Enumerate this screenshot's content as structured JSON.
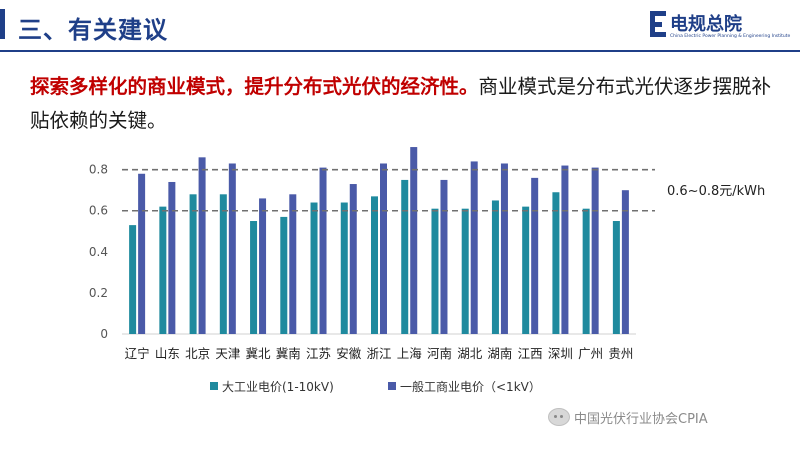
{
  "header": {
    "title": "三、有关建议",
    "logo_name": "电规总院",
    "logo_subtitle": "China Electric Power Planning & Engineering Institute",
    "logo_icon": "logo-mark-icon"
  },
  "lead": {
    "emphasis": "探索多样化的商业模式，提升分布式光伏的经济性。",
    "rest": "商业模式是分布式光伏逐步摆脱补贴依赖的关键。"
  },
  "colors": {
    "accent": "#1f3f88",
    "emphasis": "#c00000",
    "large_industrial": "#1f8a9e",
    "general_commercial": "#4a5aa8"
  },
  "chart_data": {
    "type": "bar",
    "categories": [
      "辽宁",
      "山东",
      "北京",
      "天津",
      "冀北",
      "冀南",
      "江苏",
      "安徽",
      "浙江",
      "上海",
      "河南",
      "湖北",
      "湖南",
      "江西",
      "深圳",
      "广州",
      "贵州"
    ],
    "series": [
      {
        "name": "大工业电价(1-10kV)",
        "values": [
          0.53,
          0.62,
          0.68,
          0.68,
          0.55,
          0.57,
          0.64,
          0.64,
          0.67,
          0.75,
          0.61,
          0.61,
          0.65,
          0.62,
          0.69,
          0.61,
          0.55
        ]
      },
      {
        "name": "一般工商业电价（<1kV）",
        "values": [
          0.78,
          0.74,
          0.86,
          0.83,
          0.66,
          0.68,
          0.81,
          0.73,
          0.83,
          0.91,
          0.75,
          0.84,
          0.83,
          0.76,
          0.82,
          0.81,
          0.7
        ]
      }
    ],
    "yticks": [
      "0",
      "0.2",
      "0.4",
      "0.6",
      "0.8"
    ],
    "ylim": [
      0,
      0.92
    ],
    "reference_lines": [
      0.6,
      0.8
    ],
    "annotation": "0.6~0.8元/kWh",
    "legend_position": "bottom",
    "grid": false
  },
  "watermark": {
    "icon": "wechat-icon",
    "text": "中国光伏行业协会CPIA"
  }
}
